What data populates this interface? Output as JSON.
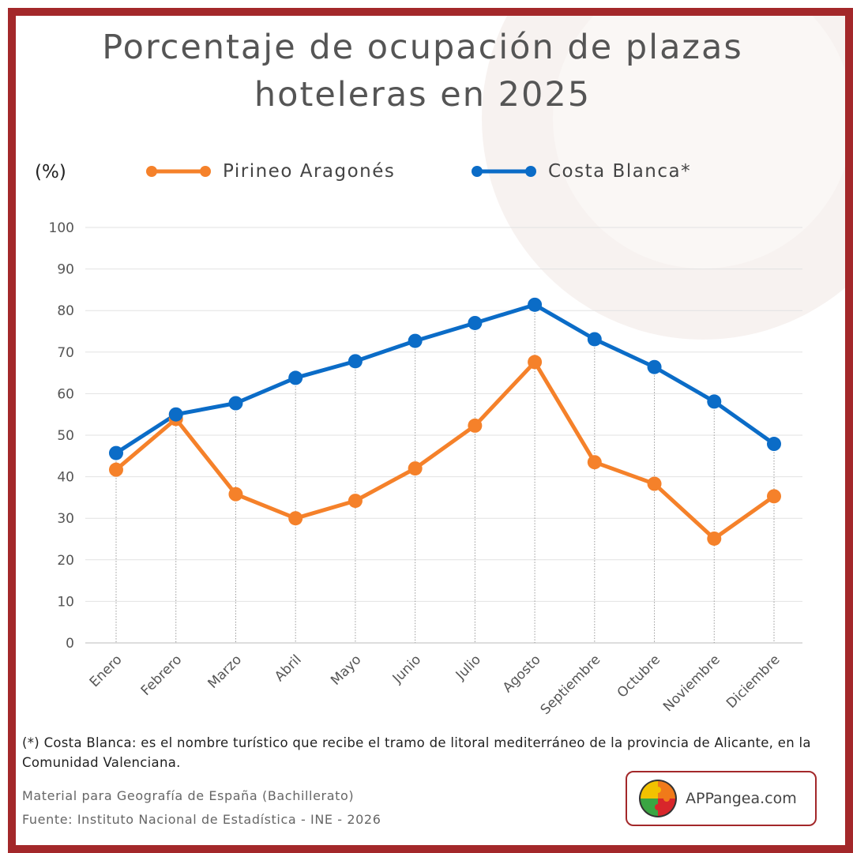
{
  "title_line1": "Porcentaje de ocupación de plazas",
  "title_line2": "hoteleras en 2025",
  "unit_label": "(%)",
  "chart_data": {
    "type": "line",
    "categories": [
      "Enero",
      "Febrero",
      "Marzo",
      "Abril",
      "Mayo",
      "Junio",
      "Julio",
      "Agosto",
      "Septiembre",
      "Octubre",
      "Noviembre",
      "Diciembre"
    ],
    "series": [
      {
        "name": "Pirineo Aragonés",
        "color": "#f5812a",
        "values": [
          41.7,
          53.9,
          35.8,
          30.0,
          34.2,
          42.0,
          52.3,
          67.6,
          43.5,
          38.3,
          25.1,
          35.3
        ]
      },
      {
        "name": "Costa Blanca*",
        "color": "#0b6cc7",
        "values": [
          45.7,
          55.0,
          57.7,
          63.8,
          67.8,
          72.7,
          77.0,
          81.4,
          73.1,
          66.4,
          58.1,
          47.9
        ]
      }
    ],
    "yticks": [
      0,
      10,
      20,
      30,
      40,
      50,
      60,
      70,
      80,
      90,
      100
    ],
    "ylim": [
      0,
      100
    ],
    "grid": true,
    "legend_position": "top"
  },
  "note": "(*) Costa Blanca: es el nombre turístico que recibe el tramo de litoral mediterráneo de la provincia de Alicante, en la Comunidad Valenciana.",
  "footer": {
    "material": "Material para Geografía de España (Bachillerato)",
    "source": "Fuente: Instituto Nacional de Estadística - INE - 2026"
  },
  "logo": {
    "text": "APPangea.com"
  }
}
